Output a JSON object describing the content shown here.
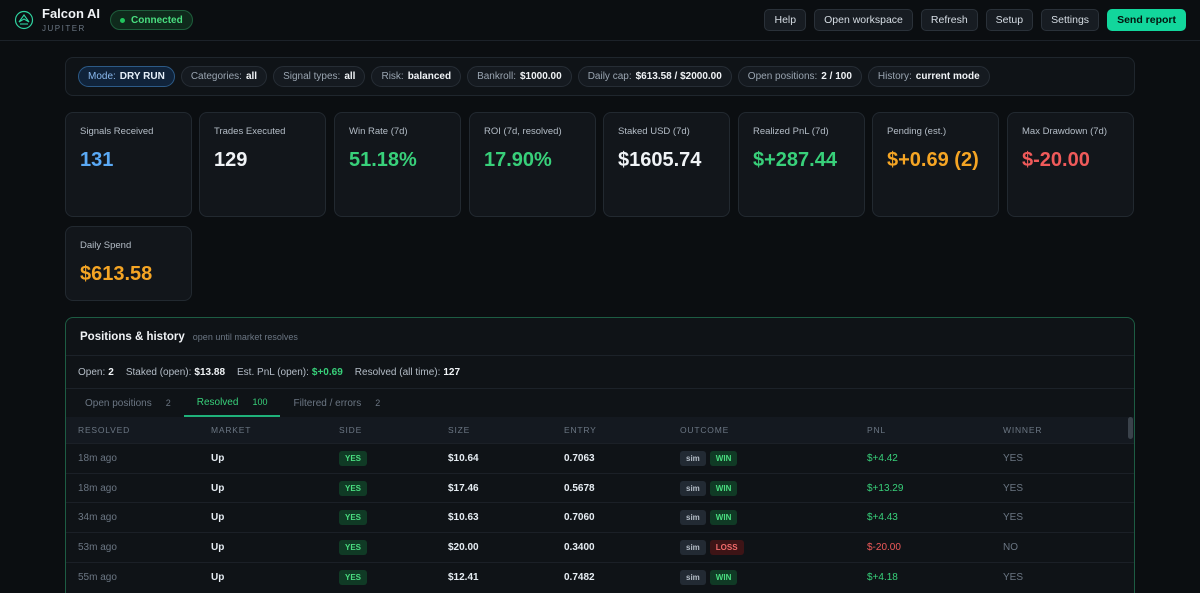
{
  "header": {
    "brand": "Falcon AI",
    "sub": "JUPITER",
    "status": "Connected",
    "buttons": [
      "Help",
      "Open workspace",
      "Refresh",
      "Setup",
      "Settings"
    ],
    "primary": "Send report"
  },
  "filters": [
    {
      "label": "Mode:",
      "value": "DRY RUN"
    },
    {
      "label": "Categories:",
      "value": "all"
    },
    {
      "label": "Signal types:",
      "value": "all"
    },
    {
      "label": "Risk:",
      "value": "balanced"
    },
    {
      "label": "Bankroll:",
      "value": "$1000.00"
    },
    {
      "label": "Daily cap:",
      "value": "$613.58 / $2000.00"
    },
    {
      "label": "Open positions:",
      "value": "2 / 100"
    },
    {
      "label": "History:",
      "value": "current mode"
    }
  ],
  "stats": [
    {
      "label": "Signals Received",
      "value": "131"
    },
    {
      "label": "Trades Executed",
      "value": "129"
    },
    {
      "label": "Win Rate (7d)",
      "value": "51.18%"
    },
    {
      "label": "ROI (7d, resolved)",
      "value": "17.90%"
    },
    {
      "label": "Staked USD (7d)",
      "value": "$1605.74"
    },
    {
      "label": "Realized PnL (7d)",
      "value": "$+287.44"
    },
    {
      "label": "Pending (est.)",
      "value": "$+0.69 (2)"
    },
    {
      "label": "Max Drawdown (7d)",
      "value": "$-20.00"
    },
    {
      "label": "Daily Spend",
      "value": "$613.58"
    }
  ],
  "colors": {
    "accent": "#12d69c",
    "positive": "#38d07a",
    "negative": "#ef5a5a",
    "warning": "#f5a524",
    "info": "#5aa9f5"
  },
  "positions": {
    "title": "Positions & history",
    "subtitle": "open until market resolves",
    "summary": [
      {
        "label": "Open:",
        "value": "2"
      },
      {
        "label": "Staked (open):",
        "value": "$13.88"
      },
      {
        "label": "Est. PnL (open):",
        "value": "$+0.69"
      },
      {
        "label": "Resolved (all time):",
        "value": "127"
      }
    ],
    "tabs": [
      {
        "label": "Open positions",
        "count": "2"
      },
      {
        "label": "Resolved",
        "count": "100"
      },
      {
        "label": "Filtered / errors",
        "count": "2"
      }
    ],
    "columns": [
      "RESOLVED",
      "MARKET",
      "SIDE",
      "SIZE",
      "ENTRY",
      "OUTCOME",
      "PNL",
      "WINNER"
    ],
    "rows": [
      {
        "resolved": "18m ago",
        "market": "Up",
        "side": "YES",
        "size": "$10.64",
        "entry": "0.7063",
        "mode": "sim",
        "outcome": "WIN",
        "pnl": "$+4.42",
        "winner": "YES"
      },
      {
        "resolved": "18m ago",
        "market": "Up",
        "side": "YES",
        "size": "$17.46",
        "entry": "0.5678",
        "mode": "sim",
        "outcome": "WIN",
        "pnl": "$+13.29",
        "winner": "YES"
      },
      {
        "resolved": "34m ago",
        "market": "Up",
        "side": "YES",
        "size": "$10.63",
        "entry": "0.7060",
        "mode": "sim",
        "outcome": "WIN",
        "pnl": "$+4.43",
        "winner": "YES"
      },
      {
        "resolved": "53m ago",
        "market": "Up",
        "side": "YES",
        "size": "$20.00",
        "entry": "0.3400",
        "mode": "sim",
        "outcome": "LOSS",
        "pnl": "$-20.00",
        "winner": "NO"
      },
      {
        "resolved": "55m ago",
        "market": "Up",
        "side": "YES",
        "size": "$12.41",
        "entry": "0.7482",
        "mode": "sim",
        "outcome": "WIN",
        "pnl": "$+4.18",
        "winner": "YES"
      }
    ]
  }
}
